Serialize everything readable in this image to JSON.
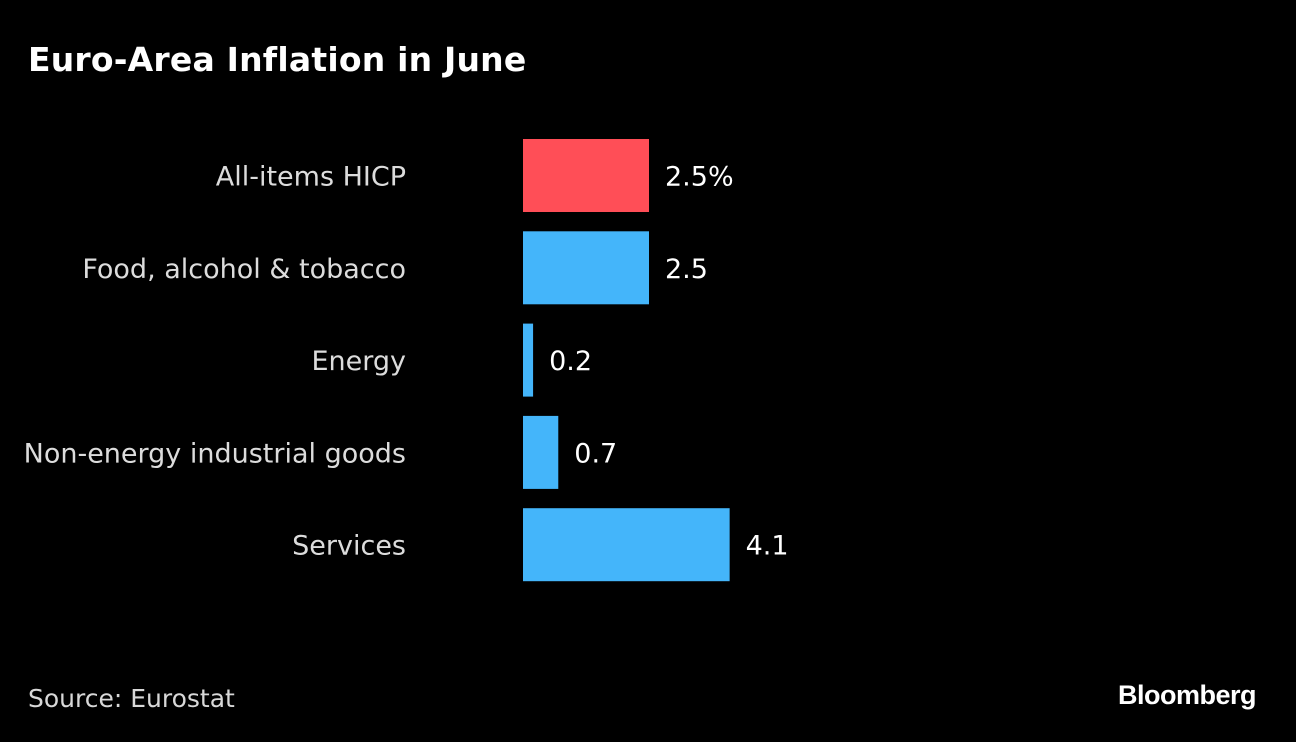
{
  "title": "Euro-Area Inflation in June",
  "footer": {
    "source": "Source: Eurostat",
    "brand": "Bloomberg"
  },
  "chart_data": {
    "type": "bar",
    "orientation": "horizontal",
    "title": "Euro-Area Inflation in June",
    "xlabel": "",
    "ylabel": "",
    "unit": "%",
    "categories": [
      "All-items HICP",
      "Food, alcohol & tobacco",
      "Energy",
      "Non-energy industrial goods",
      "Services"
    ],
    "values": [
      2.5,
      2.5,
      0.2,
      0.7,
      4.1
    ],
    "value_labels": [
      "2.5%",
      "2.5",
      "0.2",
      "0.7",
      "4.1"
    ],
    "colors": [
      "#ff4e57",
      "#44b5fa",
      "#44b5fa",
      "#44b5fa",
      "#44b5fa"
    ],
    "xlim": [
      0,
      4.1
    ],
    "grid": false,
    "legend": "none",
    "source": "Source: Eurostat"
  }
}
